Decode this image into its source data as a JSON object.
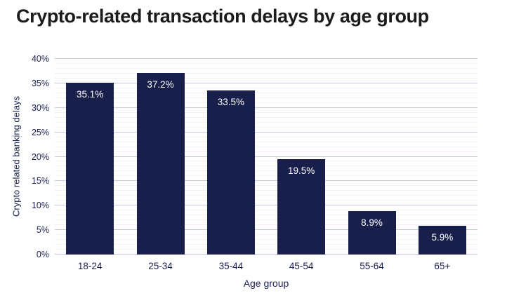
{
  "header": {
    "title": "Crypto-related transaction delays by age group"
  },
  "chart_data": {
    "type": "bar",
    "title": "Crypto-related transaction delays by age group",
    "categories": [
      "18-24",
      "25-34",
      "35-44",
      "45-54",
      "55-64",
      "65+"
    ],
    "values": [
      35.1,
      37.2,
      33.5,
      19.5,
      8.9,
      5.9
    ],
    "value_labels": [
      "35.1%",
      "37.2%",
      "33.5%",
      "19.5%",
      "8.9%",
      "5.9%"
    ],
    "xlabel": "Age group",
    "ylabel": "Crypto related banking delays",
    "ylim": [
      0,
      40
    ],
    "y_major_tick_step": 5,
    "y_minor_tick_step": 1,
    "y_tick_labels": [
      "0%",
      "5%",
      "10%",
      "15%",
      "20%",
      "25%",
      "30%",
      "35%",
      "40%"
    ],
    "grid": "horizontal, major and minor, no vertical axis line",
    "legend": "none",
    "colors": {
      "bar": "#181f4a",
      "value_label": "#ffffff",
      "axis_text": "#1a2150",
      "major_grid": "#c0c9e4",
      "minor_grid": "#f2f2f5",
      "title": "#1b1b1b",
      "background": "#ffffff"
    }
  }
}
